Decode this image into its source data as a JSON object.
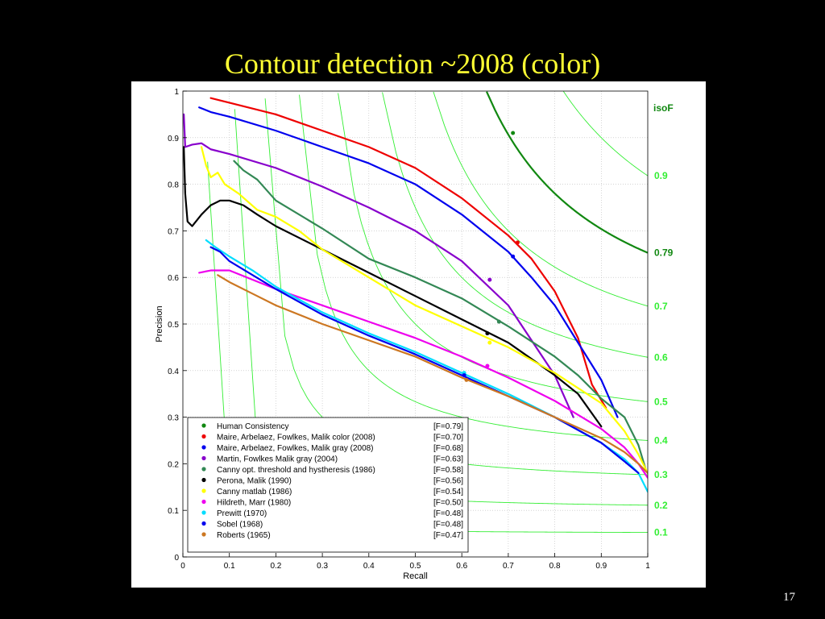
{
  "slide": {
    "title": "Contour detection ~2008 (color)",
    "page_number": "17",
    "background": "#000000",
    "title_color": "#ffff33"
  },
  "chart_data": {
    "type": "line",
    "title": "",
    "xlabel": "Recall",
    "ylabel": "Precision",
    "xlim": [
      0,
      1
    ],
    "ylim": [
      0,
      1
    ],
    "x_ticks": [
      "0",
      "0.1",
      "0.2",
      "0.3",
      "0.4",
      "0.5",
      "0.6",
      "0.7",
      "0.8",
      "0.9",
      "1"
    ],
    "y_ticks": [
      "0",
      "0.1",
      "0.2",
      "0.3",
      "0.4",
      "0.5",
      "0.6",
      "0.7",
      "0.8",
      "0.9",
      "1"
    ],
    "grid": true,
    "legend_position": "bottom-left",
    "isoF": {
      "title": "isoF",
      "curves": [
        {
          "label": "0.1",
          "f": 0.1
        },
        {
          "label": "0.2",
          "f": 0.2
        },
        {
          "label": "0.3",
          "f": 0.3
        },
        {
          "label": "0.4",
          "f": 0.4
        },
        {
          "label": "0.5",
          "f": 0.5
        },
        {
          "label": "0.6",
          "f": 0.6
        },
        {
          "label": "0.7",
          "f": 0.7
        },
        {
          "label": "0.79",
          "f": 0.79,
          "highlight": true
        },
        {
          "label": "0.9",
          "f": 0.9
        }
      ],
      "color": "#33ee33",
      "highlight_color": "#118811"
    },
    "series": [
      {
        "name": "Human  Consistency",
        "score": "[F=0.79]",
        "color": "#118811",
        "marker": [
          0.71,
          0.91
        ],
        "points": []
      },
      {
        "name": "Maire, Arbelaez, Fowlkes, Malik  color (2008)",
        "score": "[F=0.70]",
        "color": "#ee0000",
        "marker": [
          0.72,
          0.675
        ],
        "points": [
          [
            0.06,
            0.985
          ],
          [
            0.1,
            0.975
          ],
          [
            0.2,
            0.95
          ],
          [
            0.3,
            0.915
          ],
          [
            0.4,
            0.88
          ],
          [
            0.5,
            0.835
          ],
          [
            0.6,
            0.77
          ],
          [
            0.7,
            0.69
          ],
          [
            0.75,
            0.64
          ],
          [
            0.8,
            0.57
          ],
          [
            0.85,
            0.47
          ],
          [
            0.88,
            0.37
          ],
          [
            0.91,
            0.32
          ]
        ]
      },
      {
        "name": "Maire, Arbelaez, Fowlkes, Malik  gray (2008)",
        "score": "[F=0.68]",
        "color": "#0000ee",
        "marker": [
          0.71,
          0.645
        ],
        "points": [
          [
            0.035,
            0.965
          ],
          [
            0.06,
            0.955
          ],
          [
            0.1,
            0.945
          ],
          [
            0.2,
            0.915
          ],
          [
            0.3,
            0.88
          ],
          [
            0.4,
            0.845
          ],
          [
            0.5,
            0.8
          ],
          [
            0.6,
            0.735
          ],
          [
            0.7,
            0.655
          ],
          [
            0.75,
            0.6
          ],
          [
            0.8,
            0.54
          ],
          [
            0.85,
            0.46
          ],
          [
            0.9,
            0.38
          ],
          [
            0.935,
            0.3
          ]
        ]
      },
      {
        "name": "Martin, Fowlkes Malik gray (2004)",
        "score": "[F=0.63]",
        "color": "#8800cc",
        "marker": [
          0.66,
          0.595
        ],
        "points": [
          [
            0.002,
            0.95
          ],
          [
            0.005,
            0.88
          ],
          [
            0.02,
            0.885
          ],
          [
            0.04,
            0.888
          ],
          [
            0.06,
            0.875
          ],
          [
            0.1,
            0.865
          ],
          [
            0.2,
            0.835
          ],
          [
            0.3,
            0.795
          ],
          [
            0.4,
            0.75
          ],
          [
            0.5,
            0.7
          ],
          [
            0.6,
            0.635
          ],
          [
            0.7,
            0.54
          ],
          [
            0.8,
            0.39
          ],
          [
            0.84,
            0.3
          ]
        ]
      },
      {
        "name": "Canny opt. threshold and hystheresis (1986)",
        "score": "[F=0.58]",
        "color": "#338855",
        "marker": [
          0.68,
          0.505
        ],
        "points": [
          [
            0.11,
            0.85
          ],
          [
            0.13,
            0.83
          ],
          [
            0.16,
            0.81
          ],
          [
            0.2,
            0.765
          ],
          [
            0.3,
            0.705
          ],
          [
            0.4,
            0.64
          ],
          [
            0.5,
            0.6
          ],
          [
            0.6,
            0.555
          ],
          [
            0.7,
            0.495
          ],
          [
            0.8,
            0.43
          ],
          [
            0.85,
            0.39
          ],
          [
            0.9,
            0.34
          ],
          [
            0.95,
            0.3
          ],
          [
            0.98,
            0.24
          ],
          [
            0.995,
            0.19
          ]
        ]
      },
      {
        "name": "Perona, Malik (1990)",
        "score": "[F=0.56]",
        "color": "#000000",
        "marker": [
          0.655,
          0.48
        ],
        "points": [
          [
            0.002,
            0.88
          ],
          [
            0.005,
            0.78
          ],
          [
            0.01,
            0.72
          ],
          [
            0.02,
            0.71
          ],
          [
            0.04,
            0.735
          ],
          [
            0.06,
            0.755
          ],
          [
            0.08,
            0.765
          ],
          [
            0.1,
            0.765
          ],
          [
            0.13,
            0.755
          ],
          [
            0.16,
            0.735
          ],
          [
            0.2,
            0.71
          ],
          [
            0.3,
            0.66
          ],
          [
            0.4,
            0.61
          ],
          [
            0.5,
            0.56
          ],
          [
            0.6,
            0.51
          ],
          [
            0.7,
            0.46
          ],
          [
            0.8,
            0.39
          ],
          [
            0.85,
            0.35
          ],
          [
            0.9,
            0.28
          ]
        ]
      },
      {
        "name": "Canny matlab (1986)",
        "score": "[F=0.54]",
        "color": "#ffff00",
        "marker": [
          0.66,
          0.46
        ],
        "points": [
          [
            0.04,
            0.88
          ],
          [
            0.05,
            0.84
          ],
          [
            0.06,
            0.815
          ],
          [
            0.075,
            0.825
          ],
          [
            0.09,
            0.8
          ],
          [
            0.12,
            0.78
          ],
          [
            0.16,
            0.745
          ],
          [
            0.2,
            0.73
          ],
          [
            0.25,
            0.7
          ],
          [
            0.3,
            0.66
          ],
          [
            0.4,
            0.6
          ],
          [
            0.5,
            0.54
          ],
          [
            0.6,
            0.495
          ],
          [
            0.7,
            0.45
          ],
          [
            0.8,
            0.395
          ],
          [
            0.9,
            0.33
          ],
          [
            0.95,
            0.27
          ],
          [
            0.98,
            0.22
          ],
          [
            1,
            0.18
          ]
        ]
      },
      {
        "name": "Hildreth, Marr (1980)",
        "score": "[F=0.50]",
        "color": "#ee00ee",
        "marker": [
          0.655,
          0.41
        ],
        "points": [
          [
            0.035,
            0.61
          ],
          [
            0.06,
            0.615
          ],
          [
            0.1,
            0.615
          ],
          [
            0.2,
            0.575
          ],
          [
            0.3,
            0.54
          ],
          [
            0.4,
            0.505
          ],
          [
            0.5,
            0.47
          ],
          [
            0.6,
            0.43
          ],
          [
            0.7,
            0.385
          ],
          [
            0.8,
            0.335
          ],
          [
            0.9,
            0.275
          ],
          [
            0.95,
            0.235
          ],
          [
            0.98,
            0.2
          ],
          [
            1,
            0.17
          ]
        ]
      },
      {
        "name": "Prewitt  (1970)",
        "score": "[F=0.48]",
        "color": "#00ddff",
        "marker": [
          0.605,
          0.395
        ],
        "points": [
          [
            0.05,
            0.68
          ],
          [
            0.07,
            0.665
          ],
          [
            0.1,
            0.645
          ],
          [
            0.15,
            0.615
          ],
          [
            0.2,
            0.58
          ],
          [
            0.3,
            0.525
          ],
          [
            0.4,
            0.48
          ],
          [
            0.5,
            0.44
          ],
          [
            0.6,
            0.395
          ],
          [
            0.7,
            0.35
          ],
          [
            0.8,
            0.3
          ],
          [
            0.9,
            0.245
          ],
          [
            0.95,
            0.21
          ],
          [
            0.98,
            0.18
          ],
          [
            1,
            0.14
          ]
        ]
      },
      {
        "name": "Sobel  (1968)",
        "score": "[F=0.48]",
        "color": "#0000ee",
        "marker": [
          0.605,
          0.39
        ],
        "points": [
          [
            0.06,
            0.665
          ],
          [
            0.08,
            0.655
          ],
          [
            0.1,
            0.635
          ],
          [
            0.15,
            0.605
          ],
          [
            0.2,
            0.575
          ],
          [
            0.3,
            0.52
          ],
          [
            0.4,
            0.475
          ],
          [
            0.5,
            0.435
          ],
          [
            0.6,
            0.39
          ],
          [
            0.7,
            0.345
          ],
          [
            0.8,
            0.3
          ],
          [
            0.9,
            0.245
          ],
          [
            0.95,
            0.205
          ],
          [
            0.98,
            0.18
          ]
        ]
      },
      {
        "name": "Roberts (1965)",
        "score": "[F=0.47]",
        "color": "#cc7722",
        "marker": [
          0.61,
          0.38
        ],
        "points": [
          [
            0.075,
            0.605
          ],
          [
            0.1,
            0.59
          ],
          [
            0.15,
            0.565
          ],
          [
            0.2,
            0.54
          ],
          [
            0.3,
            0.5
          ],
          [
            0.4,
            0.465
          ],
          [
            0.5,
            0.43
          ],
          [
            0.6,
            0.385
          ],
          [
            0.7,
            0.345
          ],
          [
            0.8,
            0.3
          ],
          [
            0.9,
            0.255
          ],
          [
            0.95,
            0.225
          ],
          [
            0.98,
            0.2
          ],
          [
            1,
            0.18
          ]
        ]
      }
    ]
  }
}
